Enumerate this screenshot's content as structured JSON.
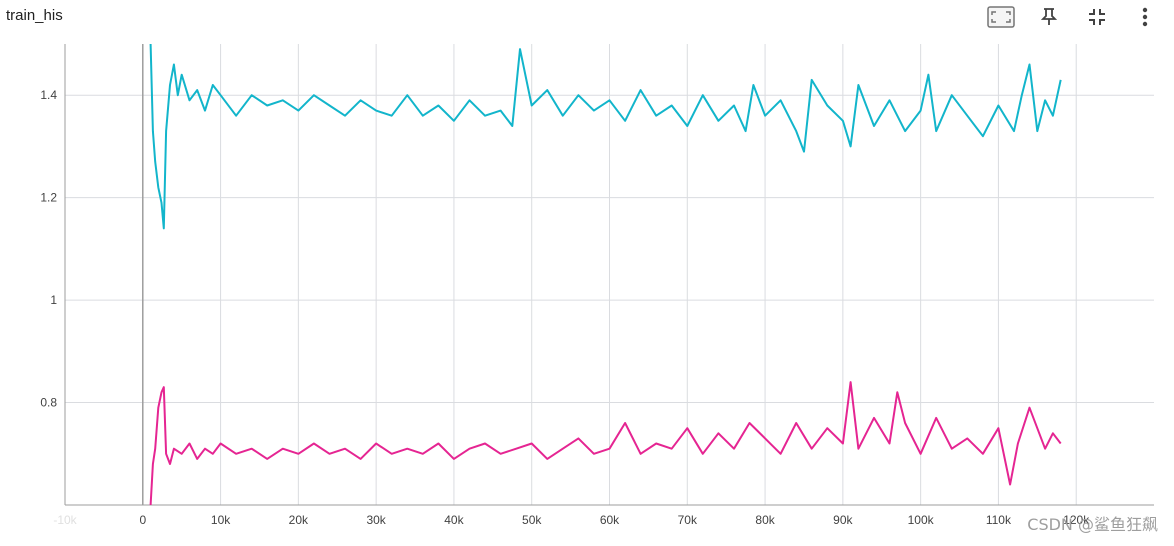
{
  "header": {
    "title": "train_his",
    "icons": [
      "fit-domain-icon",
      "pin-icon",
      "collapse-icon",
      "more-vert-icon"
    ]
  },
  "watermark": "CSDN @鲨鱼狂飙",
  "colors": {
    "series1": "#12b5cb",
    "series2": "#e52592",
    "grid": "#dadce0",
    "axis": "#9e9e9e"
  },
  "chart_data": {
    "type": "line",
    "title": "train_his",
    "xlabel": "",
    "ylabel": "",
    "xlim": [
      -10000,
      130000
    ],
    "ylim": [
      0.6,
      1.5
    ],
    "x_ticks": [
      "-10k",
      "0",
      "10k",
      "20k",
      "30k",
      "40k",
      "50k",
      "60k",
      "70k",
      "80k",
      "90k",
      "100k",
      "110k",
      "120k"
    ],
    "y_ticks": [
      "1.4",
      "1.2",
      "1",
      "0.8"
    ],
    "grid": true,
    "legend": "none",
    "series": [
      {
        "color": "#12b5cb",
        "x": [
          1000,
          1300,
          1600,
          2000,
          2400,
          2700,
          3000,
          3500,
          4000,
          4500,
          5000,
          6000,
          7000,
          8000,
          9000,
          10000,
          12000,
          14000,
          16000,
          18000,
          20000,
          22000,
          24000,
          26000,
          28000,
          30000,
          32000,
          34000,
          36000,
          38000,
          40000,
          42000,
          44000,
          46000,
          47500,
          48500,
          50000,
          52000,
          54000,
          56000,
          58000,
          60000,
          62000,
          64000,
          66000,
          68000,
          70000,
          72000,
          74000,
          76000,
          77500,
          78500,
          80000,
          82000,
          84000,
          85000,
          86000,
          88000,
          90000,
          91000,
          92000,
          94000,
          96000,
          98000,
          100000,
          101000,
          102000,
          104000,
          106000,
          108000,
          110000,
          112000,
          113000,
          114000,
          115000,
          116000,
          117000,
          118000
        ],
        "y": [
          1.5,
          1.33,
          1.27,
          1.22,
          1.19,
          1.14,
          1.33,
          1.42,
          1.46,
          1.4,
          1.44,
          1.39,
          1.41,
          1.37,
          1.42,
          1.4,
          1.36,
          1.4,
          1.38,
          1.39,
          1.37,
          1.4,
          1.38,
          1.36,
          1.39,
          1.37,
          1.36,
          1.4,
          1.36,
          1.38,
          1.35,
          1.39,
          1.36,
          1.37,
          1.34,
          1.49,
          1.38,
          1.41,
          1.36,
          1.4,
          1.37,
          1.39,
          1.35,
          1.41,
          1.36,
          1.38,
          1.34,
          1.4,
          1.35,
          1.38,
          1.33,
          1.42,
          1.36,
          1.39,
          1.33,
          1.29,
          1.43,
          1.38,
          1.35,
          1.3,
          1.42,
          1.34,
          1.39,
          1.33,
          1.37,
          1.44,
          1.33,
          1.4,
          1.36,
          1.32,
          1.38,
          1.33,
          1.4,
          1.46,
          1.33,
          1.39,
          1.36,
          1.43
        ]
      },
      {
        "color": "#e52592",
        "x": [
          1000,
          1300,
          1600,
          2000,
          2400,
          2700,
          3000,
          3500,
          4000,
          5000,
          6000,
          7000,
          8000,
          9000,
          10000,
          12000,
          14000,
          16000,
          18000,
          20000,
          22000,
          24000,
          26000,
          28000,
          30000,
          32000,
          34000,
          36000,
          38000,
          40000,
          42000,
          44000,
          46000,
          48000,
          50000,
          52000,
          54000,
          56000,
          58000,
          60000,
          62000,
          64000,
          66000,
          68000,
          70000,
          72000,
          74000,
          76000,
          78000,
          80000,
          82000,
          84000,
          86000,
          88000,
          90000,
          91000,
          92000,
          94000,
          96000,
          97000,
          98000,
          100000,
          102000,
          104000,
          106000,
          108000,
          110000,
          111500,
          112500,
          114000,
          116000,
          117000,
          118000
        ],
        "y": [
          0.6,
          0.68,
          0.71,
          0.79,
          0.82,
          0.83,
          0.7,
          0.68,
          0.71,
          0.7,
          0.72,
          0.69,
          0.71,
          0.7,
          0.72,
          0.7,
          0.71,
          0.69,
          0.71,
          0.7,
          0.72,
          0.7,
          0.71,
          0.69,
          0.72,
          0.7,
          0.71,
          0.7,
          0.72,
          0.69,
          0.71,
          0.72,
          0.7,
          0.71,
          0.72,
          0.69,
          0.71,
          0.73,
          0.7,
          0.71,
          0.76,
          0.7,
          0.72,
          0.71,
          0.75,
          0.7,
          0.74,
          0.71,
          0.76,
          0.73,
          0.7,
          0.76,
          0.71,
          0.75,
          0.72,
          0.84,
          0.71,
          0.77,
          0.72,
          0.82,
          0.76,
          0.7,
          0.77,
          0.71,
          0.73,
          0.7,
          0.75,
          0.64,
          0.72,
          0.79,
          0.71,
          0.74,
          0.72
        ]
      }
    ]
  }
}
